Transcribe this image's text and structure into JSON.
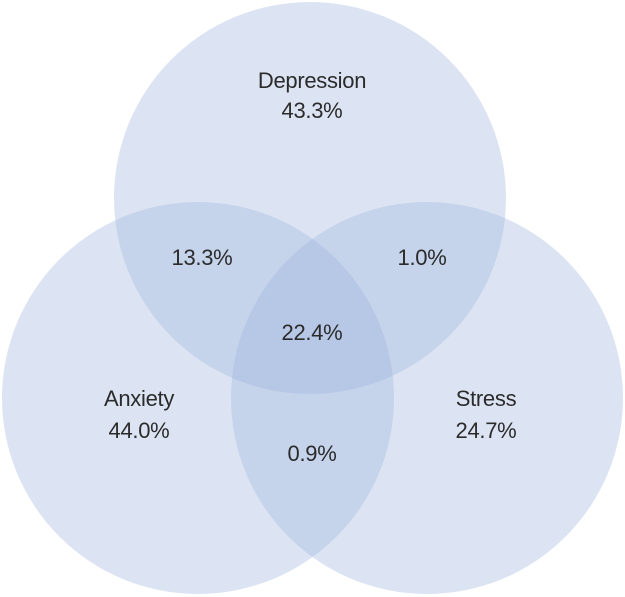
{
  "venn": {
    "circle_color": "#9fb5de",
    "text_color": "#2b2b2b",
    "sets": [
      {
        "key": "depression",
        "name": "Depression",
        "value": "43.3%"
      },
      {
        "key": "anxiety",
        "name": "Anxiety",
        "value": "44.0%"
      },
      {
        "key": "stress",
        "name": "Stress",
        "value": "24.7%"
      }
    ],
    "overlaps": {
      "depression_anxiety": "13.3%",
      "depression_stress": "1.0%",
      "anxiety_stress": "0.9%",
      "all_three": "22.4%"
    }
  }
}
